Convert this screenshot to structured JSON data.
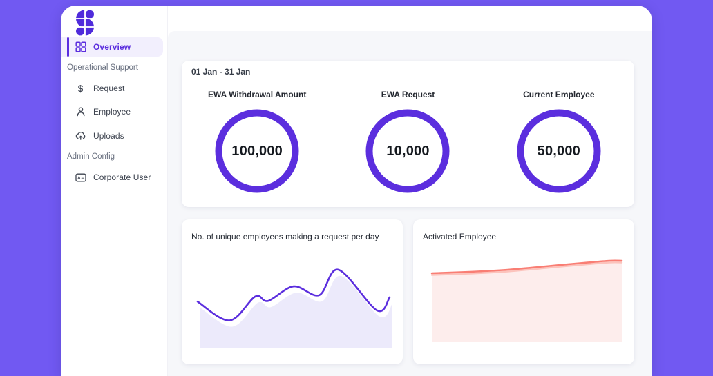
{
  "colors": {
    "outer_background": "#7159F2",
    "accent_purple": "#5B2EDE",
    "logo_purple": "#4F2BDB",
    "content_background": "#F6F7FA",
    "card_background": "#FFFFFF",
    "ring_stroke": "#5B2EDE",
    "active_item_background": "#F2EFFD",
    "red_line": "#F97E74",
    "red_fill": "#FDEDEC",
    "purple_fill": "#ECEAFB"
  },
  "sidebar": {
    "logo_icon": "brand-s-logo",
    "items": [
      {
        "label": "Overview",
        "icon": "dashboard-grid-icon",
        "type": "item",
        "active": true
      },
      {
        "label": "Operational Support",
        "type": "section"
      },
      {
        "label": "Request",
        "icon": "dollar-icon",
        "type": "item"
      },
      {
        "label": "Employee",
        "icon": "person-icon",
        "type": "item"
      },
      {
        "label": "Uploads",
        "icon": "cloud-upload-icon",
        "type": "item"
      },
      {
        "label": "Admin Config",
        "type": "section"
      },
      {
        "label": "Corporate User",
        "icon": "id-card-icon",
        "type": "item"
      }
    ]
  },
  "overview_card": {
    "date_range": "01 Jan - 31 Jan",
    "stats": [
      {
        "title": "EWA Withdrawal Amount",
        "value": "100,000"
      },
      {
        "title": "EWA Request",
        "value": "10,000"
      },
      {
        "title": "Current Employee",
        "value": "50,000"
      }
    ]
  },
  "chart_data": [
    {
      "type": "area",
      "title": "No. of unique employees making a request per day",
      "xlabel": "day of month (01 Jan - 31 Jan, axis not shown)",
      "ylabel": "unique employees (axis unlabeled, relative scale)",
      "x": [
        1,
        6,
        10,
        12,
        16,
        20,
        23,
        29,
        31
      ],
      "values": [
        56,
        30,
        63,
        57,
        77,
        65,
        100,
        44,
        62
      ],
      "ylim": [
        0,
        100
      ],
      "grid": false,
      "legend": "none",
      "line_color": "#5B2EDE",
      "fill_color": "#ECEAFB"
    },
    {
      "type": "area",
      "title": "Activated Employee",
      "xlabel": "day of month (01 Jan - 31 Jan, axis not shown)",
      "ylabel": "activated employees (axis unlabeled, relative scale)",
      "x": [
        1,
        7,
        13,
        19,
        25,
        29,
        31
      ],
      "values": [
        98,
        100,
        103,
        108,
        113,
        116,
        116
      ],
      "ylim": [
        0,
        120
      ],
      "grid": false,
      "legend": "none",
      "line_color": "#F97E74",
      "line_halo_color": "#FCC3BC",
      "fill_color": "#FDEDEC"
    }
  ]
}
